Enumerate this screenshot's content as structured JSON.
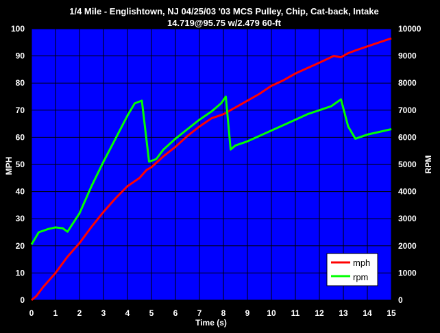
{
  "chart_data": {
    "type": "line",
    "title": "1/4 Mile - Englishtown, NJ 04/25/03  '03 MCS Pulley, Chip, Cat-back, Intake",
    "subtitle": "14.719@95.75 w/2.479 60-ft",
    "xlabel": "Time (s)",
    "ylabel": "MPH",
    "y2label": "RPM",
    "xlim": [
      0,
      15
    ],
    "ylim": [
      0,
      100
    ],
    "y2lim": [
      0,
      10000
    ],
    "x_ticks": [
      "0",
      "1",
      "2",
      "3",
      "4",
      "5",
      "6",
      "7",
      "8",
      "9",
      "10",
      "11",
      "12",
      "13",
      "14",
      "15"
    ],
    "y_ticks": [
      "0",
      "10",
      "20",
      "30",
      "40",
      "50",
      "60",
      "70",
      "80",
      "90",
      "100"
    ],
    "y2_ticks": [
      "0",
      "1000",
      "2000",
      "3000",
      "4000",
      "5000",
      "6000",
      "7000",
      "8000",
      "9000",
      "10000"
    ],
    "grid": true,
    "legend_position": "bottom-right",
    "colors": {
      "background": "#000000",
      "plot_area": "#0000ff",
      "grid": "#000000",
      "mph": "#ff0000",
      "rpm": "#00ff00"
    },
    "series": [
      {
        "name": "mph",
        "axis": "left",
        "color": "#ff0000",
        "x": [
          0,
          0.2,
          0.5,
          1.0,
          1.5,
          2.0,
          2.5,
          3.0,
          3.5,
          4.0,
          4.5,
          4.8,
          5.0,
          5.5,
          6.0,
          6.5,
          7.0,
          7.5,
          8.0,
          8.5,
          9.0,
          9.5,
          10.0,
          10.5,
          11.0,
          11.5,
          12.0,
          12.6,
          12.9,
          13.2,
          13.5,
          14.0,
          14.5,
          15.0
        ],
        "values": [
          0,
          1.5,
          5,
          10,
          16,
          21,
          27,
          32.5,
          37.5,
          42,
          45,
          48,
          49,
          53,
          56.5,
          60.5,
          64,
          67,
          68.5,
          71,
          73.5,
          76,
          79,
          81,
          83.5,
          85.5,
          87.5,
          90,
          89.5,
          91,
          92,
          93.5,
          95,
          96.5
        ]
      },
      {
        "name": "rpm",
        "axis": "right",
        "color": "#00ff00",
        "x": [
          0,
          0.3,
          0.7,
          1.0,
          1.3,
          1.5,
          2.0,
          2.5,
          3.0,
          3.5,
          4.0,
          4.3,
          4.6,
          4.9,
          5.2,
          5.5,
          6.0,
          6.5,
          7.0,
          7.5,
          7.9,
          8.1,
          8.3,
          8.5,
          9.0,
          9.5,
          10.0,
          10.5,
          11.0,
          11.5,
          12.0,
          12.5,
          12.9,
          13.2,
          13.5,
          14.0,
          14.5,
          15.0
        ],
        "values": [
          2050,
          2500,
          2620,
          2680,
          2650,
          2520,
          3200,
          4200,
          5100,
          5950,
          6800,
          7250,
          7350,
          5100,
          5200,
          5550,
          5950,
          6300,
          6650,
          6950,
          7250,
          7500,
          5550,
          5700,
          5850,
          6050,
          6250,
          6450,
          6650,
          6850,
          7000,
          7150,
          7400,
          6400,
          5950,
          6100,
          6200,
          6300
        ]
      }
    ]
  }
}
